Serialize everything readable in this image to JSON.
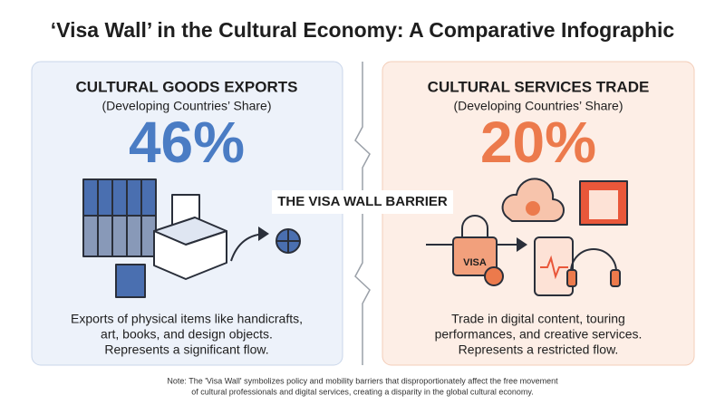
{
  "title": "‘Visa Wall’ in the Cultural Economy: A Comparative Infographic",
  "left": {
    "heading": "CULTURAL GOODS EXPORTS",
    "subheading": "(Developing Countries’ Share)",
    "figure": "46%",
    "description": [
      "Exports of physical items like handicrafts,",
      "art, books, and design objects.",
      "Represents a significant flow."
    ]
  },
  "barrier": "THE VISA WALL BARRIER",
  "right": {
    "heading": "CULTURAL SERVICES TRADE",
    "subheading": "(Developing Countries’ Share)",
    "figure": "20%",
    "badge": "VISA",
    "description": [
      "Trade in digital content, touring",
      "performances, and creative services.",
      "Represents a restricted flow."
    ]
  },
  "note": [
    "Note: The 'Visa Wall' symbolizes policy and mobility barriers that disproportionately affect the free movement",
    "of cultural professionals and digital services, creating a disparity in the global cultural economy."
  ]
}
